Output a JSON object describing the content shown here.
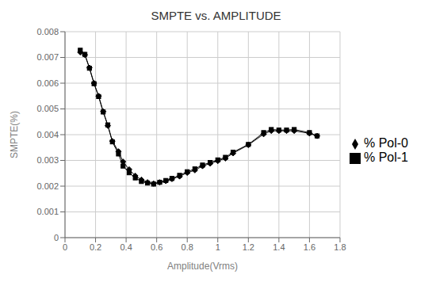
{
  "chart_data": {
    "type": "line",
    "title": "SMPTE vs. AMPLITUDE",
    "xlabel": "Amplitude(Vrms)",
    "ylabel": "SMPTE(%)",
    "xlim": [
      0,
      1.8
    ],
    "ylim": [
      0,
      0.008
    ],
    "xticks": [
      0,
      0.2,
      0.4,
      0.6,
      0.8,
      1.0,
      1.2,
      1.4,
      1.6,
      1.8
    ],
    "yticks": [
      0,
      0.001,
      0.002,
      0.003,
      0.004,
      0.005,
      0.006,
      0.007,
      0.008
    ],
    "grid": true,
    "legend": "right",
    "x": [
      0.1,
      0.13,
      0.16,
      0.19,
      0.22,
      0.25,
      0.28,
      0.31,
      0.35,
      0.38,
      0.42,
      0.46,
      0.5,
      0.54,
      0.58,
      0.62,
      0.66,
      0.7,
      0.75,
      0.8,
      0.85,
      0.9,
      0.95,
      1.0,
      1.05,
      1.1,
      1.2,
      1.3,
      1.35,
      1.4,
      1.45,
      1.5,
      1.6,
      1.65
    ],
    "series": [
      {
        "name": "% Pol-0",
        "color": "#000000",
        "marker": "diamond",
        "values": [
          0.0072,
          0.0071,
          0.0066,
          0.006,
          0.0055,
          0.0049,
          0.00435,
          0.00375,
          0.00335,
          0.00295,
          0.00265,
          0.0024,
          0.00225,
          0.00215,
          0.0021,
          0.00215,
          0.0022,
          0.00228,
          0.00238,
          0.00252,
          0.00262,
          0.00278,
          0.00288,
          0.00298,
          0.00308,
          0.00328,
          0.0036,
          0.00402,
          0.00415,
          0.00415,
          0.00415,
          0.00415,
          0.00405,
          0.00395
        ]
      },
      {
        "name": "% Pol-1",
        "color": "#000000",
        "marker": "square",
        "values": [
          0.00728,
          0.00712,
          0.00658,
          0.00598,
          0.00548,
          0.00488,
          0.00438,
          0.00372,
          0.00325,
          0.00278,
          0.00252,
          0.00232,
          0.00218,
          0.00212,
          0.00208,
          0.00215,
          0.00222,
          0.0023,
          0.00242,
          0.00256,
          0.00267,
          0.00282,
          0.00292,
          0.00302,
          0.00312,
          0.00332,
          0.00362,
          0.00408,
          0.0042,
          0.00418,
          0.00418,
          0.0042,
          0.00408,
          0.00395
        ]
      }
    ]
  }
}
